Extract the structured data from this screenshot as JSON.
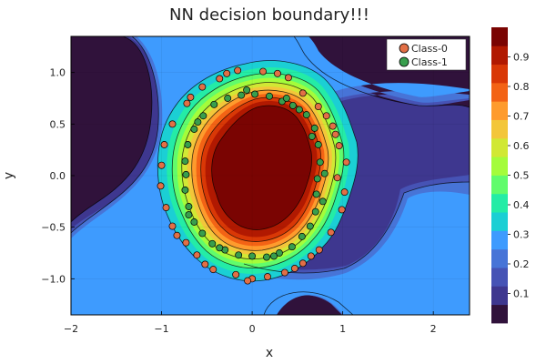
{
  "chart_data": {
    "type": "scatter",
    "title": "NN decision boundary!!!",
    "xlabel": "x",
    "ylabel": "y",
    "xlim": [
      -2.0,
      2.4
    ],
    "ylim": [
      -1.35,
      1.35
    ],
    "xticks": [
      -2,
      -1,
      0,
      1,
      2
    ],
    "xtick_labels": [
      "−2",
      "−1",
      "0",
      "1",
      "2"
    ],
    "yticks": [
      -1.0,
      -0.5,
      0.0,
      0.5,
      1.0
    ],
    "ytick_labels": [
      "−1.0",
      "−0.5",
      "0.0",
      "0.5",
      "1.0"
    ],
    "grid": true,
    "legend_position": "top-right",
    "colorbar": {
      "ticks": [
        0.1,
        0.2,
        0.3,
        0.4,
        0.5,
        0.6,
        0.7,
        0.8,
        0.9
      ],
      "tick_labels": [
        "0.1",
        "0.2",
        "0.3",
        "0.4",
        "0.5",
        "0.6",
        "0.7",
        "0.8",
        "0.9"
      ],
      "colors": [
        "#30123b",
        "#3e378f",
        "#4653b5",
        "#4774d7",
        "#3e9bfe",
        "#1bcfd4",
        "#24eca6",
        "#61fc6c",
        "#a4fc3b",
        "#d1e834",
        "#f3c63a",
        "#fe9b2d",
        "#f36315",
        "#d93806",
        "#b11901",
        "#7a0402"
      ],
      "range": [
        0.0,
        1.0
      ]
    },
    "series": [
      {
        "name": "Class-0",
        "color": "#e26f46",
        "points": [
          [
            0.94,
            -0.02
          ],
          [
            1.02,
            -0.16
          ],
          [
            1.04,
            0.13
          ],
          [
            0.99,
            -0.33
          ],
          [
            0.96,
            0.29
          ],
          [
            0.87,
            -0.55
          ],
          [
            0.89,
            0.48
          ],
          [
            0.74,
            -0.72
          ],
          [
            0.73,
            0.67
          ],
          [
            0.56,
            -0.85
          ],
          [
            0.56,
            0.8
          ],
          [
            0.36,
            -0.94
          ],
          [
            0.4,
            0.95
          ],
          [
            0.17,
            -0.98
          ],
          [
            0.12,
            1.01
          ],
          [
            0.0,
            -1.0
          ],
          [
            -0.16,
            1.02
          ],
          [
            -0.18,
            -0.96
          ],
          [
            -0.36,
            0.94
          ],
          [
            -0.43,
            -0.91
          ],
          [
            -0.55,
            0.86
          ],
          [
            -0.61,
            -0.77
          ],
          [
            -0.72,
            0.7
          ],
          [
            -0.73,
            -0.65
          ],
          [
            -0.88,
            0.5
          ],
          [
            -0.88,
            -0.49
          ],
          [
            -0.97,
            0.3
          ],
          [
            -0.95,
            -0.31
          ],
          [
            -1.0,
            0.1
          ],
          [
            -1.01,
            -0.1
          ],
          [
            0.28,
            0.99
          ],
          [
            -0.05,
            -1.02
          ],
          [
            0.65,
            -0.78
          ],
          [
            -0.28,
            0.99
          ],
          [
            -0.83,
            -0.58
          ],
          [
            0.82,
            0.58
          ],
          [
            -0.68,
            0.76
          ],
          [
            0.47,
            -0.9
          ],
          [
            -0.52,
            -0.86
          ],
          [
            0.92,
            0.4
          ]
        ]
      },
      {
        "name": "Class-1",
        "color": "#389e4d",
        "points": [
          [
            0.72,
            -0.03
          ],
          [
            0.71,
            -0.18
          ],
          [
            0.75,
            0.13
          ],
          [
            0.7,
            -0.35
          ],
          [
            0.73,
            0.3
          ],
          [
            0.64,
            -0.49
          ],
          [
            0.69,
            0.46
          ],
          [
            0.55,
            -0.59
          ],
          [
            0.6,
            0.59
          ],
          [
            0.44,
            -0.69
          ],
          [
            0.45,
            0.68
          ],
          [
            0.3,
            -0.75
          ],
          [
            0.33,
            0.72
          ],
          [
            0.16,
            -0.79
          ],
          [
            0.19,
            0.77
          ],
          [
            0.0,
            -0.78
          ],
          [
            0.03,
            0.79
          ],
          [
            -0.15,
            -0.77
          ],
          [
            -0.12,
            0.78
          ],
          [
            -0.3,
            -0.72
          ],
          [
            -0.27,
            0.75
          ],
          [
            -0.44,
            -0.66
          ],
          [
            -0.42,
            0.69
          ],
          [
            -0.55,
            -0.56
          ],
          [
            -0.54,
            0.58
          ],
          [
            -0.64,
            -0.45
          ],
          [
            -0.64,
            0.45
          ],
          [
            -0.7,
            -0.3
          ],
          [
            -0.71,
            0.3
          ],
          [
            -0.74,
            -0.14
          ],
          [
            -0.74,
            0.14
          ],
          [
            -0.73,
            0.01
          ],
          [
            0.8,
            0.02
          ],
          [
            0.78,
            -0.25
          ],
          [
            0.52,
            0.64
          ],
          [
            -0.06,
            0.83
          ],
          [
            0.38,
            0.75
          ],
          [
            -0.36,
            -0.7
          ],
          [
            0.24,
            -0.78
          ],
          [
            -0.6,
            0.52
          ],
          [
            0.66,
            0.38
          ],
          [
            -0.7,
            -0.38
          ]
        ]
      }
    ]
  }
}
